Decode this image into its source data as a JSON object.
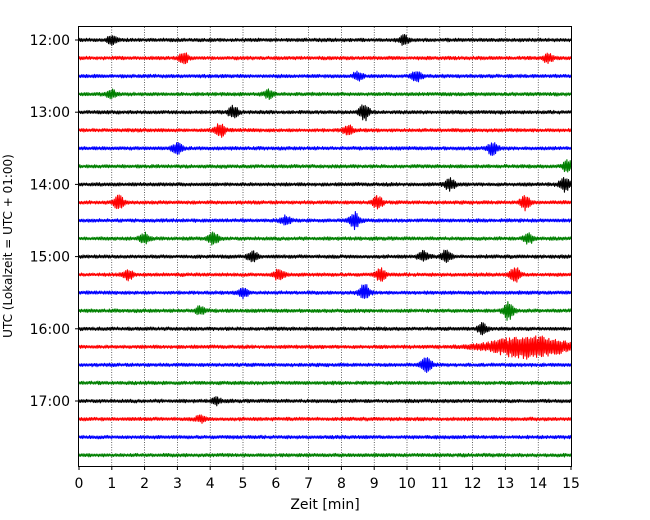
{
  "chart_data": {
    "type": "line",
    "title": "",
    "xlabel": "Zeit  [min]",
    "ylabel": "UTC (Lokalzeit = UTC + 01:00)",
    "xlim": [
      0,
      15
    ],
    "xticks": [
      0,
      1,
      2,
      3,
      4,
      5,
      6,
      7,
      8,
      9,
      10,
      11,
      12,
      13,
      14,
      15
    ],
    "grid_x": true,
    "grid_x_style": "dotted",
    "y_tick_labels": [
      "12:00",
      "13:00",
      "14:00",
      "15:00",
      "16:00",
      "17:00"
    ],
    "y_tick_rows": [
      0,
      4,
      8,
      12,
      16,
      20
    ],
    "row_interval_minutes": 15,
    "series_colors": [
      "#000000",
      "#ff0000",
      "#0000ff",
      "#008000"
    ],
    "rows": [
      {
        "start": "12:00",
        "color": "#000000",
        "events": [
          {
            "t": 1.0,
            "amp": 4
          },
          {
            "t": 9.9,
            "amp": 5
          }
        ]
      },
      {
        "start": "12:15",
        "color": "#ff0000",
        "events": [
          {
            "t": 3.2,
            "amp": 5
          },
          {
            "t": 14.3,
            "amp": 4
          }
        ]
      },
      {
        "start": "12:30",
        "color": "#0000ff",
        "events": [
          {
            "t": 8.5,
            "amp": 4
          },
          {
            "t": 10.3,
            "amp": 5
          }
        ]
      },
      {
        "start": "12:45",
        "color": "#008000",
        "events": [
          {
            "t": 1.0,
            "amp": 4
          },
          {
            "t": 5.8,
            "amp": 4
          }
        ]
      },
      {
        "start": "13:00",
        "color": "#000000",
        "events": [
          {
            "t": 4.7,
            "amp": 6
          },
          {
            "t": 8.7,
            "amp": 8
          }
        ]
      },
      {
        "start": "13:15",
        "color": "#ff0000",
        "events": [
          {
            "t": 4.3,
            "amp": 7
          },
          {
            "t": 8.2,
            "amp": 5
          }
        ]
      },
      {
        "start": "13:30",
        "color": "#0000ff",
        "events": [
          {
            "t": 3.0,
            "amp": 5
          },
          {
            "t": 12.6,
            "amp": 6
          }
        ]
      },
      {
        "start": "13:45",
        "color": "#008000",
        "events": [
          {
            "t": 14.9,
            "amp": 6
          }
        ]
      },
      {
        "start": "14:00",
        "color": "#000000",
        "events": [
          {
            "t": 11.3,
            "amp": 6
          },
          {
            "t": 14.8,
            "amp": 7
          }
        ]
      },
      {
        "start": "14:15",
        "color": "#ff0000",
        "events": [
          {
            "t": 1.2,
            "amp": 7
          },
          {
            "t": 9.1,
            "amp": 6
          },
          {
            "t": 13.6,
            "amp": 7
          }
        ]
      },
      {
        "start": "14:30",
        "color": "#0000ff",
        "events": [
          {
            "t": 6.3,
            "amp": 4
          },
          {
            "t": 8.4,
            "amp": 8
          }
        ]
      },
      {
        "start": "14:45",
        "color": "#008000",
        "events": [
          {
            "t": 2.0,
            "amp": 5
          },
          {
            "t": 4.1,
            "amp": 6
          },
          {
            "t": 13.7,
            "amp": 5
          }
        ]
      },
      {
        "start": "15:00",
        "color": "#000000",
        "events": [
          {
            "t": 5.3,
            "amp": 5
          },
          {
            "t": 10.5,
            "amp": 5
          },
          {
            "t": 11.2,
            "amp": 6
          }
        ]
      },
      {
        "start": "15:15",
        "color": "#ff0000",
        "events": [
          {
            "t": 1.5,
            "amp": 5
          },
          {
            "t": 6.1,
            "amp": 6
          },
          {
            "t": 9.2,
            "amp": 6
          },
          {
            "t": 13.3,
            "amp": 7
          }
        ]
      },
      {
        "start": "15:30",
        "color": "#0000ff",
        "events": [
          {
            "t": 5.0,
            "amp": 5
          },
          {
            "t": 8.7,
            "amp": 8
          }
        ]
      },
      {
        "start": "15:45",
        "color": "#008000",
        "events": [
          {
            "t": 3.7,
            "amp": 4
          },
          {
            "t": 13.1,
            "amp": 9
          }
        ]
      },
      {
        "start": "16:00",
        "color": "#000000",
        "events": [
          {
            "t": 12.3,
            "amp": 5
          }
        ]
      },
      {
        "start": "16:15",
        "color": "#ff0000",
        "events": [
          {
            "t": 13.7,
            "amp": 11,
            "burst": 1.4
          }
        ]
      },
      {
        "start": "16:30",
        "color": "#0000ff",
        "events": [
          {
            "t": 10.6,
            "amp": 8
          }
        ]
      },
      {
        "start": "16:45",
        "color": "#008000",
        "events": []
      },
      {
        "start": "17:00",
        "color": "#000000",
        "events": [
          {
            "t": 4.2,
            "amp": 3
          }
        ]
      },
      {
        "start": "17:15",
        "color": "#ff0000",
        "events": [
          {
            "t": 3.7,
            "amp": 3
          }
        ]
      },
      {
        "start": "17:30",
        "color": "#0000ff",
        "events": []
      },
      {
        "start": "17:45",
        "color": "#008000",
        "events": []
      }
    ]
  }
}
